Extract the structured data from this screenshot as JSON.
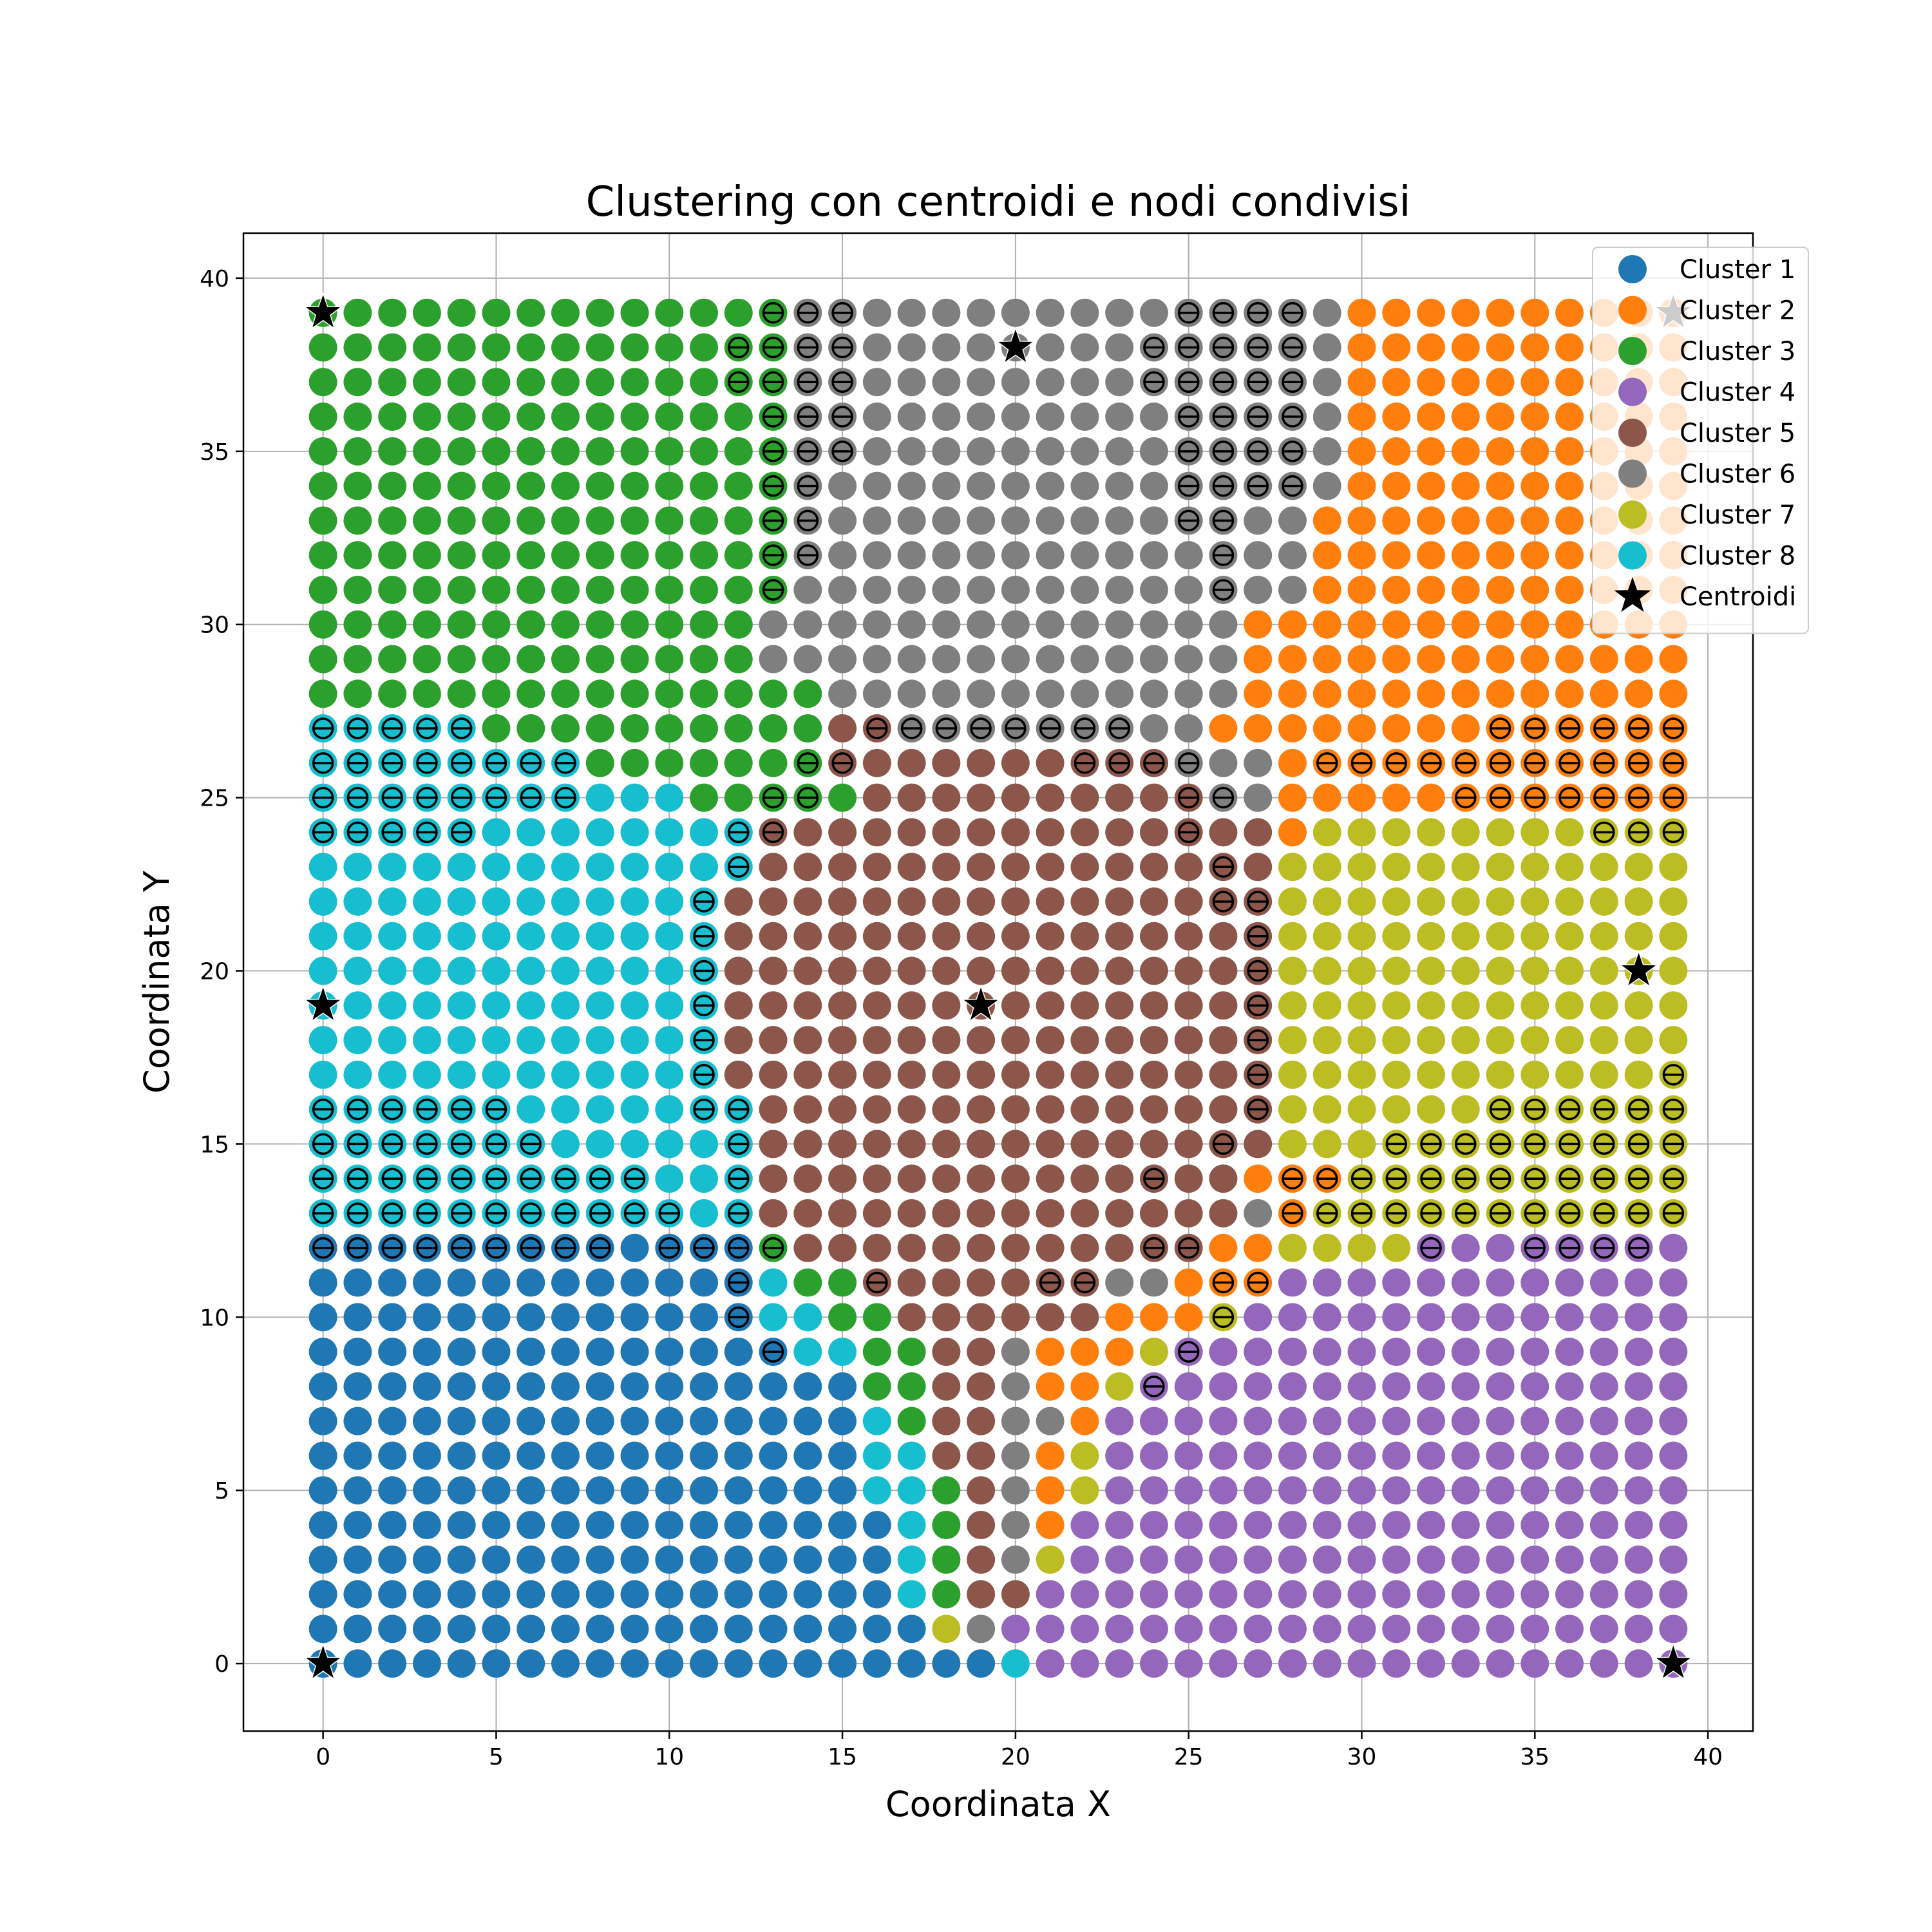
{
  "chart_data": {
    "type": "scatter",
    "title": "Clustering con centroidi e nodi condivisi",
    "xlabel": "Coordinata X",
    "ylabel": "Coordinata Y",
    "xlim": [
      -2.3,
      41.3
    ],
    "ylim": [
      -1.95,
      41.3
    ],
    "xticks": [
      0,
      5,
      10,
      15,
      20,
      25,
      30,
      35,
      40
    ],
    "yticks": [
      0,
      5,
      10,
      15,
      20,
      25,
      30,
      35,
      40
    ],
    "grid": true,
    "legend_position": "top-right",
    "grid_size": 40,
    "clusters": [
      {
        "name": "Cluster 1",
        "color": "#1f77b4"
      },
      {
        "name": "Cluster 2",
        "color": "#ff7f0e"
      },
      {
        "name": "Cluster 3",
        "color": "#2ca02c"
      },
      {
        "name": "Cluster 4",
        "color": "#9467bd"
      },
      {
        "name": "Cluster 5",
        "color": "#8c564b"
      },
      {
        "name": "Cluster 6",
        "color": "#7f7f7f"
      },
      {
        "name": "Cluster 7",
        "color": "#bcbd22"
      },
      {
        "name": "Cluster 8",
        "color": "#17becf"
      }
    ],
    "grid_rows_top_to_bottom_y39_to_y0": [
      "3333333333333366666666666666662222222222",
      "3333333333333366666666666666662222222222",
      "3333333333333366666666666666662222222222",
      "3333333333333366666666666666662222222222",
      "3333333333333366666666666666662222222222",
      "3333333333333366666666666666662222222222",
      "3333333333333366666666666666622222222222",
      "3333333333333366666666666666622222222222",
      "3333333333333366666666666666622222222222",
      "3333333333333666666666666662222222222222",
      "3333333333333666666666666662222222222222",
      "3333333333333336666666666662222222222222",
      "8888833333333335566666666622222222222222",
      "8888888833333335555555555666222222222222",
      "8888888888833333555555555566222222222222",
      "8888888888888555555555555555277777777777",
      "8888888888888555555555555555777777777777",
      "8888888888885555555555555555777777777777",
      "8888888888885555555555555555777777777777",
      "8888888888885555555555555555777777777777",
      "8888888888885555555555555555777777777777",
      "8888888888885555555555555555777777777777",
      "8888888888885555555555555555777777777777",
      "8888888888888555555555555555777777777777",
      "8888888888888555555555555555777777777777",
      "8888888888888555555555555552227777777777",
      "8888888888888555555555555556277777777777",
      "1111111111111355555555555522777744444444",
      "1111111111111833555555566222444444444444",
      "1111111111111883355555522274444444444444",
      "1111111111111188335562227444444444444444",
      "1111111111111111335562274444444444444444",
      "1111111111111111835566244444444444444444",
      "1111111111111111885562744444444444444444",
      "1111111111111111883562744444444444444444",
      "1111111111111111183562444444444444444444",
      "1111111111111111183567444444444444444444",
      "1111111111111111183554444444444444444444",
      "1111111111111111117644444444444444444444",
      "1111111111111111111184444444444444444444"
    ],
    "shared_rows_top_to_bottom_y39_to_y0": [
      "0000000000000111000000000111100000000000",
      "0000000000001111000000001111100000000000",
      "0000000000001111000000001111100000000000",
      "0000000000000111000000000111100000000000",
      "0000000000000111000000000111100000000000",
      "0000000000000110000000000111100000000000",
      "0000000000000110000000000110000000000000",
      "0000000000000110000000000010000000000000",
      "0000000000000100000000000010000000000000",
      "0000000000000000000000000000000000000000",
      "0000000000000000000000000000000000000000",
      "0000000000000000000000000000000000000000",
      "1111100000000000111111110000000000111111",
      "1111111100000011000000111100011111111111",
      "1111111100000110000000000110000001111111",
      "1111100000001100000000000100000000000111",
      "0000000000001000000000000010000000000000",
      "0000000000010000000000000011000000000000",
      "0000000000010000000000000001000000000000",
      "0000000000010000000000000001000000000000",
      "0000000000010000000000000001000000000000",
      "0000000000010000000000000001000000000000",
      "0000000000010000000000000001000000000001",
      "1111110000011000000000000001000000111111",
      "1111111000001000000000000010000111111111",
      "1111111111001000000000001000111111111111",
      "1111111111101000000000000000111111111111",
      "1111111110111100000000001100000010011110",
      "0000000000001000100001100011000000000000",
      "0000000000001000000000000010000000000000",
      "0000000000000100000000000100000000000000",
      "0000000000000000000000001000000000000000",
      "0000000000000000000000000000000000000000",
      "0000000000000000000000000000000000000000",
      "0000000000000000000000000000000000000000",
      "0000000000000000000000000000000000000000",
      "0000000000000000000000000000000000000000",
      "0000000000000000000000000000000000000000",
      "0000000000000000000000000000000000000000",
      "0000000000000000000000000000000000000000"
    ],
    "centroids": [
      {
        "x": 0,
        "y": 39
      },
      {
        "x": 20,
        "y": 38
      },
      {
        "x": 39,
        "y": 39
      },
      {
        "x": 0,
        "y": 19
      },
      {
        "x": 19,
        "y": 19
      },
      {
        "x": 38,
        "y": 20
      },
      {
        "x": 0,
        "y": 0
      },
      {
        "x": 39,
        "y": 0
      }
    ],
    "legend": [
      "Cluster 1",
      "Cluster 2",
      "Cluster 3",
      "Cluster 4",
      "Cluster 5",
      "Cluster 6",
      "Cluster 7",
      "Cluster 8",
      "Centroidi"
    ],
    "centroid_color": "#000000"
  }
}
